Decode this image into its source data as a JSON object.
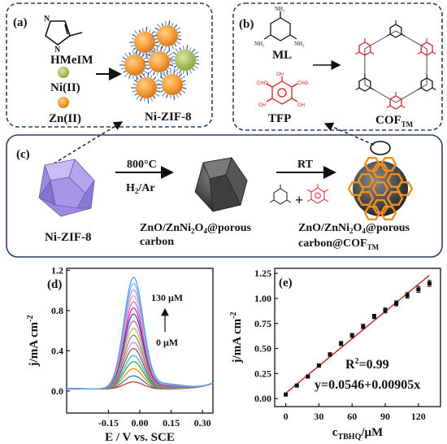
{
  "panel_a": {
    "label": "(a)",
    "hmeim": "HMeIM",
    "ni": "Ni(II)",
    "zn": "Zn(II)",
    "product": "Ni-ZIF-8"
  },
  "panel_b": {
    "label": "(b)",
    "ml": "ML",
    "tfp": "TFP",
    "cof": "COF",
    "cof_sub": "TM",
    "nh2": "NH₂",
    "cho": "CHO",
    "oh": "OH"
  },
  "panel_c": {
    "label": "(c)",
    "start": "Ni-ZIF-8",
    "temp": "800°C",
    "gas_pre": "H",
    "gas_sub": "2",
    "gas_post": "/Ar",
    "mid_line1_pre": "ZnO/ZnNi",
    "mid_line1_sub": "2",
    "mid_line1_mid": "O",
    "mid_line1_sub2": "4",
    "mid_line1_post": "@porous",
    "mid_line2": "carbon",
    "rt": "RT",
    "plus": "+",
    "end_line1_pre": "ZnO/ZnNi",
    "end_line1_sub": "2",
    "end_line1_mid": "O",
    "end_line1_sub2": "4",
    "end_line1_post": "@porous",
    "end_line2_pre": "carbon@COF",
    "end_line2_sub": "TM"
  },
  "chart_data": [
    {
      "panel": "(d)",
      "type": "line",
      "xlabel": "E / V vs. SCE",
      "ylabel_pre": "j/mA cm",
      "ylabel_sup": "-2",
      "xlim": [
        -0.35,
        0.35
      ],
      "ylim": [
        -0.22,
        1.22
      ],
      "xticks": [
        -0.15,
        0.0,
        0.15,
        0.3
      ],
      "xtick_labels": [
        "-0.15",
        "0.00",
        "0.15",
        "0.30"
      ],
      "yticks": [
        0.0,
        0.4,
        0.8,
        1.2
      ],
      "ytick_labels": [
        "0.0",
        "0.4",
        "0.8",
        "1.2"
      ],
      "annotation_top": "130 μM",
      "annotation_bottom": "0 μM",
      "peak_x": -0.03,
      "peak_heights": [
        0.07,
        0.13,
        0.2,
        0.27,
        0.33,
        0.4,
        0.46,
        0.53,
        0.6,
        0.67,
        0.74,
        0.8,
        0.86,
        0.92,
        0.98,
        1.04,
        1.1
      ],
      "colors": [
        "#d62728",
        "#1f77b4",
        "#ff7f0e",
        "#2ca02c",
        "#17becf",
        "#8c564b",
        "#e377c2",
        "#7f7f7f",
        "#bcbd22",
        "#9467bd",
        "#1f3fbf",
        "#ff1493",
        "#aa7bd9",
        "#ff9fb0",
        "#c48ae0",
        "#6fb7f0",
        "#3fa0f0"
      ]
    },
    {
      "panel": "(e)",
      "type": "scatter",
      "xlabel_pre": "c",
      "xlabel_sub": "TBHQ",
      "xlabel_post": "/μM",
      "ylabel_pre": "j/mA cm",
      "ylabel_sup": "-2",
      "xlim": [
        -10,
        140
      ],
      "ylim": [
        -0.08,
        1.3
      ],
      "xticks": [
        0,
        30,
        60,
        90,
        120
      ],
      "xtick_labels": [
        "0",
        "30",
        "60",
        "90",
        "120"
      ],
      "yticks": [
        0.0,
        0.25,
        0.5,
        0.75,
        1.0,
        1.25
      ],
      "ytick_labels": [
        "0.00",
        "0.25",
        "0.50",
        "0.75",
        "1.00",
        "1.25"
      ],
      "x": [
        0,
        10,
        20,
        30,
        40,
        50,
        60,
        70,
        80,
        90,
        100,
        110,
        120,
        130
      ],
      "y": [
        0.04,
        0.13,
        0.22,
        0.33,
        0.44,
        0.55,
        0.63,
        0.72,
        0.82,
        0.88,
        0.95,
        1.03,
        1.09,
        1.15
      ],
      "err": [
        0.01,
        0.012,
        0.015,
        0.015,
        0.018,
        0.02,
        0.02,
        0.022,
        0.022,
        0.025,
        0.025,
        0.028,
        0.03,
        0.03
      ],
      "fit": {
        "intercept": 0.0546,
        "slope": 0.00905,
        "color": "#cc2222"
      },
      "r2_pre": "R",
      "r2_sup": "2",
      "r2_post": "=0.99",
      "equation": "y=0.0546+0.00905x"
    }
  ]
}
